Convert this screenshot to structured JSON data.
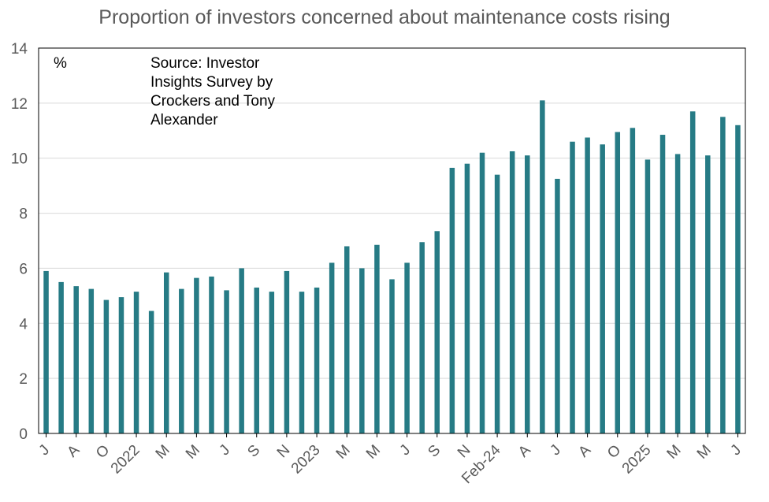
{
  "chart_data": {
    "type": "bar",
    "title": "Proportion of investors concerned about maintenance costs rising",
    "unit_label": "%",
    "annotation": "Source: Investor Insights Survey by Crockers and Tony Alexander",
    "xlabel": "",
    "ylabel": "",
    "ylim": [
      0,
      14
    ],
    "yticks": [
      0,
      2,
      4,
      6,
      8,
      10,
      12,
      14
    ],
    "grid": true,
    "bar_color": "#267B85",
    "categories": [
      "J",
      "",
      "A",
      "",
      "O",
      "",
      "2022",
      "",
      "M",
      "",
      "M",
      "",
      "J",
      "",
      "S",
      "",
      "N",
      "",
      "2023",
      "",
      "M",
      "",
      "M",
      "",
      "J",
      "",
      "S",
      "",
      "N",
      "",
      "Feb-24",
      "",
      "A",
      "",
      "J",
      "",
      "A",
      "",
      "O",
      "",
      "2025",
      "",
      "M",
      "",
      "M",
      "",
      "J"
    ],
    "values": [
      5.9,
      5.5,
      5.35,
      5.25,
      4.85,
      4.95,
      5.15,
      4.45,
      5.85,
      5.25,
      5.65,
      5.7,
      5.2,
      6.0,
      5.3,
      5.15,
      5.9,
      5.15,
      5.3,
      6.2,
      6.8,
      6.0,
      6.85,
      5.6,
      6.2,
      6.95,
      7.35,
      9.65,
      9.8,
      10.2,
      9.4,
      10.25,
      10.1,
      12.1,
      9.25,
      10.6,
      10.75,
      10.5,
      10.95,
      11.1,
      9.95,
      10.85,
      10.15,
      11.7,
      10.1,
      11.5,
      11.2
    ]
  }
}
